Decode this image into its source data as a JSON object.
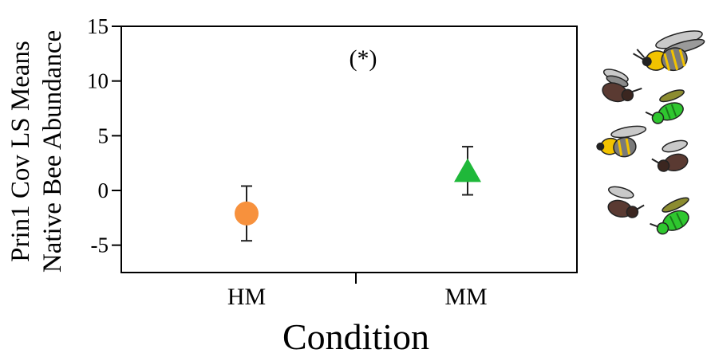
{
  "chart_data": {
    "type": "scatter",
    "categories": [
      "HM",
      "MM"
    ],
    "xlabel": "Condition",
    "ylabel": [
      "Prin1 Cov LS Means",
      "Native Bee Abundance"
    ],
    "ylim": [
      -7.5,
      15
    ],
    "yticks": [
      15,
      10,
      5,
      0,
      -5
    ],
    "annotation": "(*)",
    "grid": false,
    "points": [
      {
        "category": "HM",
        "mean": -2.1,
        "lower": -4.6,
        "upper": 0.4,
        "marker": "circle",
        "color": "#f7913d"
      },
      {
        "category": "MM",
        "mean": 1.7,
        "lower": -0.4,
        "upper": 4.0,
        "marker": "triangle",
        "color": "#1fb83a"
      }
    ]
  },
  "decorations": {
    "bee_icons": [
      {
        "name": "yellow-bumble-bee-icon",
        "colors": [
          "#f2c300",
          "#7a7a7a"
        ]
      },
      {
        "name": "brown-bee-icon",
        "colors": [
          "#5a3a32",
          "#8a8a8a"
        ]
      },
      {
        "name": "green-bee-icon",
        "colors": [
          "#2fc72f",
          "#6b6b20"
        ]
      },
      {
        "name": "yellow-bumble-bee-icon",
        "colors": [
          "#f2c300",
          "#7a7a7a"
        ]
      },
      {
        "name": "brown-bee-icon",
        "colors": [
          "#5a3a32",
          "#8a8a8a"
        ]
      },
      {
        "name": "brown-bee-icon",
        "colors": [
          "#5a3a32",
          "#8a8a8a"
        ]
      },
      {
        "name": "green-bee-icon",
        "colors": [
          "#2fc72f",
          "#6b6b20"
        ]
      }
    ]
  }
}
